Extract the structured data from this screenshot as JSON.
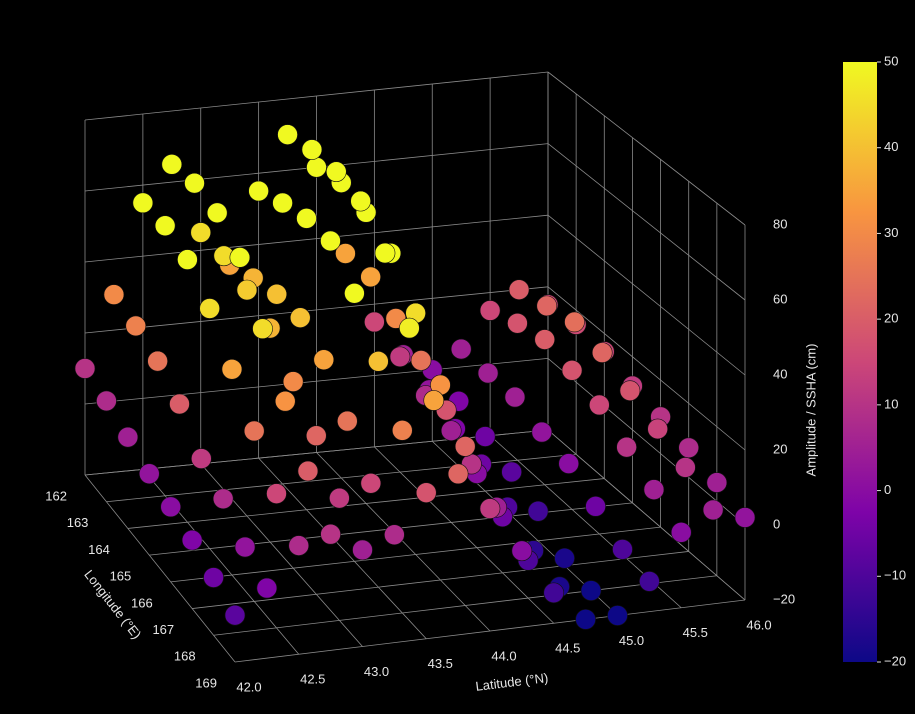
{
  "chart_data": {
    "type": "scatter3d",
    "xlabel": "Latitude (°N)",
    "ylabel": "Longitude (°E)",
    "zlabel": "Amplitude / SSHA (cm)",
    "xlim": [
      42,
      46
    ],
    "xticks": [
      {
        "value": 42,
        "label": "42.0"
      },
      42.5,
      {
        "value": 43,
        "label": "43.0"
      },
      43.5,
      {
        "value": 44,
        "label": "44.0"
      },
      44.5,
      {
        "value": 45,
        "label": "45.0"
      },
      45.5,
      {
        "value": 46,
        "label": "46.0"
      }
    ],
    "ylim": [
      162,
      169
    ],
    "yticks": [
      162,
      163,
      164,
      165,
      166,
      167,
      168,
      169
    ],
    "zlim": [
      -20,
      80
    ],
    "zticks": [
      {
        "value": -20,
        "label": "−20"
      },
      0,
      20,
      40,
      60,
      80
    ],
    "colormap": "plasma",
    "clim": [
      -20,
      50
    ],
    "cticks": [
      {
        "value": -20,
        "label": "−20"
      },
      {
        "value": -10,
        "label": "−10"
      },
      0,
      10,
      20,
      30,
      40,
      50
    ],
    "grid": true,
    "lat": [
      42,
      42.25,
      42.5,
      42.75,
      43,
      43.25,
      43.5,
      43.75,
      44,
      44.25,
      44.5,
      44.75,
      45,
      45.25,
      45.5,
      45.75,
      46
    ],
    "lon": [
      162,
      163,
      164,
      165,
      166,
      167,
      168,
      169
    ],
    "z": [
      [
        10,
        30,
        55,
        65,
        45,
        35,
        55,
        70,
        60,
        35,
        15,
        5,
        0,
        5,
        15,
        20,
        15
      ],
      [
        8,
        28,
        55,
        66,
        45,
        38,
        58,
        72,
        62,
        35,
        12,
        2,
        -2,
        5,
        18,
        22,
        16
      ],
      [
        5,
        25,
        52,
        64,
        42,
        40,
        60,
        72,
        60,
        30,
        8,
        -2,
        -5,
        5,
        20,
        24,
        15
      ],
      [
        2,
        20,
        45,
        58,
        38,
        40,
        60,
        70,
        55,
        25,
        5,
        -5,
        -8,
        2,
        18,
        22,
        12
      ],
      [
        0,
        12,
        35,
        45,
        30,
        35,
        52,
        62,
        45,
        18,
        0,
        -10,
        -12,
        0,
        15,
        18,
        10
      ],
      [
        -2,
        8,
        25,
        32,
        22,
        25,
        40,
        48,
        32,
        10,
        -5,
        -15,
        -18,
        -5,
        10,
        14,
        8
      ],
      [
        -5,
        2,
        15,
        20,
        12,
        15,
        28,
        35,
        22,
        5,
        -10,
        -18,
        -20,
        -10,
        5,
        10,
        5
      ],
      [
        -8,
        -2,
        8,
        10,
        5,
        8,
        18,
        22,
        12,
        0,
        -12,
        -20,
        -20,
        -12,
        0,
        5,
        2
      ]
    ]
  }
}
